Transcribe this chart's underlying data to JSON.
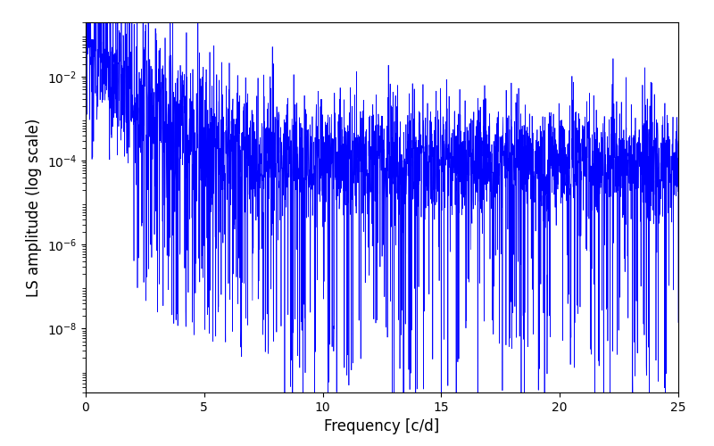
{
  "xlabel": "Frequency [c/d]",
  "ylabel": "LS amplitude (log scale)",
  "xlim": [
    0,
    25
  ],
  "ylim_min": 3e-10,
  "ylim_max": 0.2,
  "line_color": "#0000FF",
  "line_width": 0.5,
  "background_color": "#ffffff",
  "figsize": [
    8.0,
    5.0
  ],
  "dpi": 100,
  "yticks": [
    1e-08,
    1e-06,
    0.0001,
    0.01
  ],
  "xticks": [
    0,
    5,
    10,
    15,
    20,
    25
  ],
  "seed": 77,
  "n_points": 3000
}
